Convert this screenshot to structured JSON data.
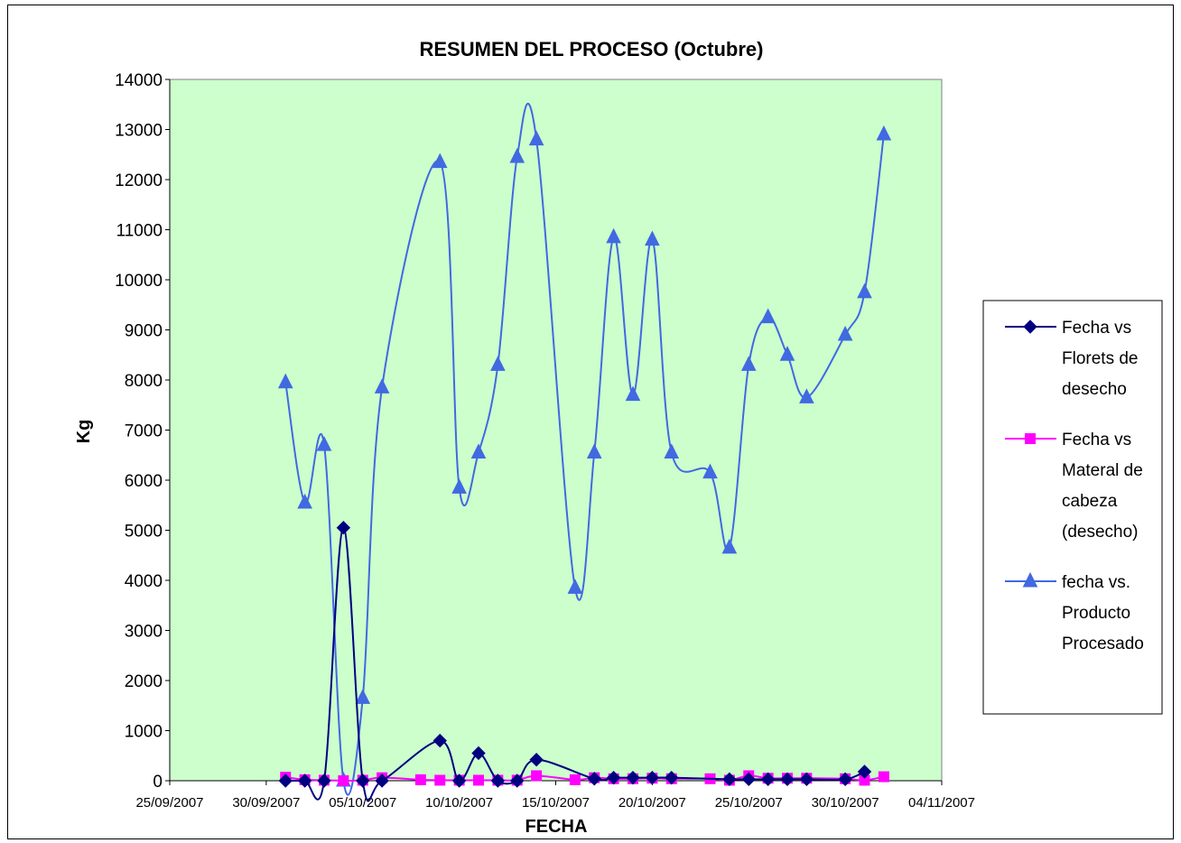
{
  "chart_data": {
    "type": "line",
    "title": "RESUMEN DEL PROCESO (Octubre)",
    "xlabel": "FECHA",
    "ylabel": "Kg",
    "ylim": [
      0,
      14000
    ],
    "xlim": [
      "25/09/2007",
      "04/11/2007"
    ],
    "yticks": [
      "0",
      "1000",
      "2000",
      "3000",
      "4000",
      "5000",
      "6000",
      "7000",
      "8000",
      "9000",
      "10000",
      "11000",
      "12000",
      "13000",
      "14000"
    ],
    "xticks": [
      "25/09/2007",
      "30/09/2007",
      "05/10/2007",
      "10/10/2007",
      "15/10/2007",
      "20/10/2007",
      "25/10/2007",
      "30/10/2007",
      "04/11/2007"
    ],
    "plot_background": "#CCFFCC",
    "grid": false,
    "legend_position": "right",
    "series": [
      {
        "name": "Fecha vs Florets de desecho",
        "legend_lines": [
          "Fecha vs",
          "Florets de",
          "desecho"
        ],
        "color": "#000080",
        "marker": "diamond",
        "x": [
          "01/10/2007",
          "02/10/2007",
          "03/10/2007",
          "04/10/2007",
          "05/10/2007",
          "06/10/2007",
          "09/10/2007",
          "10/10/2007",
          "11/10/2007",
          "12/10/2007",
          "13/10/2007",
          "14/10/2007",
          "17/10/2007",
          "18/10/2007",
          "19/10/2007",
          "20/10/2007",
          "21/10/2007",
          "24/10/2007",
          "25/10/2007",
          "26/10/2007",
          "27/10/2007",
          "28/10/2007",
          "30/10/2007",
          "31/10/2007"
        ],
        "values": [
          0,
          0,
          0,
          5050,
          0,
          0,
          800,
          0,
          550,
          0,
          0,
          420,
          40,
          60,
          60,
          60,
          60,
          30,
          30,
          30,
          30,
          30,
          30,
          180
        ]
      },
      {
        "name": "Fecha vs Materal de cabeza (desecho)",
        "legend_lines": [
          "Fecha vs",
          "Materal de",
          "cabeza",
          "(desecho)"
        ],
        "color": "#FF00FF",
        "marker": "square",
        "x": [
          "01/10/2007",
          "02/10/2007",
          "03/10/2007",
          "04/10/2007",
          "05/10/2007",
          "06/10/2007",
          "08/10/2007",
          "09/10/2007",
          "10/10/2007",
          "11/10/2007",
          "12/10/2007",
          "13/10/2007",
          "14/10/2007",
          "16/10/2007",
          "17/10/2007",
          "18/10/2007",
          "19/10/2007",
          "20/10/2007",
          "21/10/2007",
          "23/10/2007",
          "24/10/2007",
          "25/10/2007",
          "26/10/2007",
          "27/10/2007",
          "28/10/2007",
          "30/10/2007",
          "31/10/2007",
          "01/11/2007"
        ],
        "values": [
          70,
          20,
          10,
          0,
          10,
          60,
          20,
          10,
          10,
          10,
          10,
          10,
          100,
          20,
          60,
          40,
          40,
          50,
          40,
          40,
          10,
          100,
          50,
          50,
          50,
          40,
          10,
          80
        ]
      },
      {
        "name": "fecha vs. Producto Procesado",
        "legend_lines": [
          "fecha vs.",
          "Producto",
          "Procesado"
        ],
        "color": "#4169E1",
        "marker": "triangle",
        "x": [
          "01/10/2007",
          "02/10/2007",
          "03/10/2007",
          "04/10/2007",
          "05/10/2007",
          "06/10/2007",
          "09/10/2007",
          "10/10/2007",
          "11/10/2007",
          "12/10/2007",
          "13/10/2007",
          "14/10/2007",
          "16/10/2007",
          "17/10/2007",
          "18/10/2007",
          "19/10/2007",
          "20/10/2007",
          "21/10/2007",
          "23/10/2007",
          "24/10/2007",
          "25/10/2007",
          "26/10/2007",
          "27/10/2007",
          "28/10/2007",
          "30/10/2007",
          "31/10/2007",
          "01/11/2007"
        ],
        "values": [
          7950,
          5550,
          6700,
          0,
          1650,
          7850,
          12350,
          5850,
          6550,
          8300,
          12450,
          12800,
          3850,
          6550,
          10850,
          7700,
          10800,
          6550,
          6150,
          4650,
          8300,
          9250,
          8500,
          7650,
          8900,
          9750,
          12900
        ]
      }
    ]
  }
}
